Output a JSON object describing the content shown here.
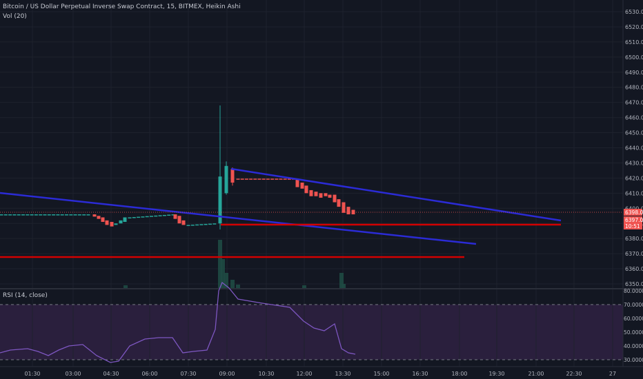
{
  "header": {
    "symbol_title": "Bitcoin / US Dollar Perpetual Inverse Swap Contract, 15, BITMEX, Heikin Ashi",
    "volume_label": "Vol (20)"
  },
  "rsi": {
    "label": "RSI (14, close)",
    "ticks": [
      "80.0000",
      "70.0000",
      "60.0000",
      "50.0000",
      "40.0000",
      "30.0000"
    ],
    "values": [
      80,
      70,
      60,
      50,
      40,
      30
    ]
  },
  "price_axis": {
    "ticks": [
      "6530.0",
      "6520.0",
      "6510.0",
      "6500.0",
      "6490.0",
      "6480.0",
      "6470.0",
      "6460.0",
      "6450.0",
      "6440.0",
      "6430.0",
      "6420.0",
      "6410.0",
      "6400.0",
      "6390.0",
      "6380.0",
      "6370.0",
      "6360.0",
      "6350.0"
    ],
    "values": [
      6530,
      6520,
      6510,
      6500,
      6490,
      6480,
      6470,
      6460,
      6450,
      6440,
      6430,
      6420,
      6410,
      6400,
      6390,
      6380,
      6370,
      6360,
      6350
    ],
    "badges": [
      {
        "text": "6398.0",
        "color": "#ef5350"
      },
      {
        "text": "6397.0",
        "color": "#ef5350"
      },
      {
        "text": "10:51",
        "color": "#ef5350"
      }
    ]
  },
  "time_axis": {
    "ticks": [
      "01:30",
      "03:00",
      "04:30",
      "06:00",
      "07:30",
      "09:00",
      "10:30",
      "12:00",
      "13:30",
      "15:00",
      "16:30",
      "18:00",
      "19:30",
      "21:00",
      "22:30",
      "27"
    ]
  },
  "colors": {
    "background": "#131722",
    "grid": "#1e222d",
    "up": "#26a69a",
    "down": "#ef5350",
    "trendline": "#2b2bd6",
    "support": "#d30000",
    "rsi_line": "#7e57c2",
    "rsi_band": "#2a1f3d"
  }
}
